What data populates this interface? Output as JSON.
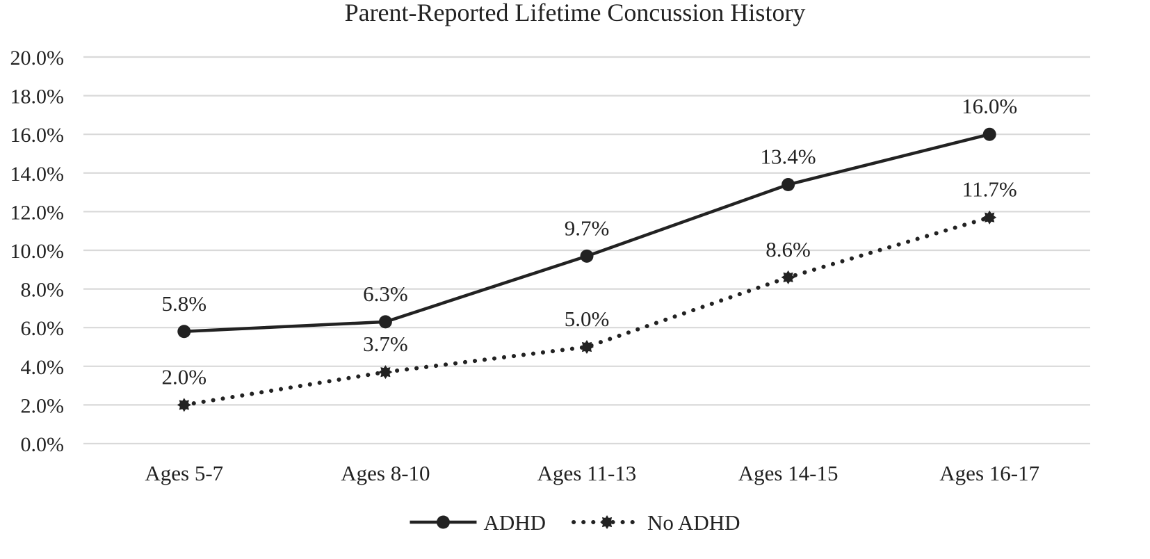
{
  "chart_data": {
    "type": "line",
    "title": "Parent-Reported Lifetime Concussion History",
    "xlabel": "",
    "ylabel": "",
    "categories": [
      "Ages 5-7",
      "Ages 8-10",
      "Ages 11-13",
      "Ages 14-15",
      "Ages 16-17"
    ],
    "ylim": [
      0,
      20
    ],
    "y_ticks": [
      0,
      2,
      4,
      6,
      8,
      10,
      12,
      14,
      16,
      18,
      20
    ],
    "y_tick_labels": [
      "0.0%",
      "2.0%",
      "4.0%",
      "6.0%",
      "8.0%",
      "10.0%",
      "12.0%",
      "14.0%",
      "16.0%",
      "18.0%",
      "20.0%"
    ],
    "grid": true,
    "legend_position": "bottom",
    "series": [
      {
        "name": "ADHD",
        "style": "solid",
        "marker": "circle",
        "color": "#222222",
        "values": [
          5.8,
          6.3,
          9.7,
          13.4,
          16.0
        ],
        "labels": [
          "5.8%",
          "6.3%",
          "9.7%",
          "13.4%",
          "16.0%"
        ]
      },
      {
        "name": "No ADHD",
        "style": "dotted",
        "marker": "star",
        "color": "#222222",
        "values": [
          2.0,
          3.7,
          5.0,
          8.6,
          11.7
        ],
        "labels": [
          "2.0%",
          "3.7%",
          "5.0%",
          "8.6%",
          "11.7%"
        ]
      }
    ],
    "gridline_color": "#d9d9d9"
  }
}
